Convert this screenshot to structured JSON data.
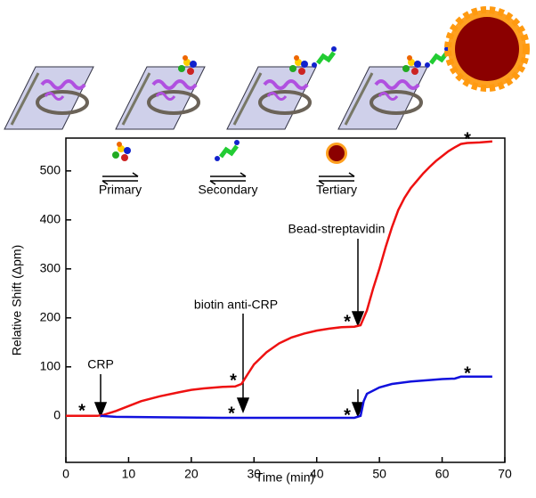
{
  "chart_data": {
    "type": "line",
    "xlabel": "Time (min)",
    "ylabel": "Relative Shift (Δpm)",
    "xlim": [
      0,
      70
    ],
    "ylim": [
      -95,
      567
    ],
    "xticks": [
      0,
      10,
      20,
      30,
      40,
      50,
      60,
      70
    ],
    "yticks": [
      0,
      100,
      200,
      300,
      400,
      500
    ],
    "series": [
      {
        "color": "#ee1111",
        "x": [
          0,
          5,
          6,
          8,
          10,
          12,
          15,
          18,
          20,
          22,
          25,
          27,
          28,
          29,
          30,
          32,
          34,
          36,
          38,
          40,
          42,
          44,
          46,
          47,
          48,
          49,
          50,
          51,
          52,
          53,
          54,
          55,
          56,
          57,
          58,
          59,
          60,
          61,
          62,
          63,
          64,
          66,
          68
        ],
        "values": [
          0,
          0,
          2,
          10,
          20,
          30,
          40,
          48,
          53,
          56,
          59,
          60,
          65,
          85,
          105,
          130,
          148,
          160,
          168,
          174,
          178,
          181,
          182,
          185,
          215,
          260,
          300,
          345,
          385,
          420,
          445,
          465,
          480,
          495,
          508,
          520,
          530,
          540,
          548,
          555,
          557,
          558,
          560
        ]
      },
      {
        "color": "#1111dd",
        "x": [
          5.5,
          8,
          15,
          25,
          35,
          46,
          47,
          47.5,
          48,
          50,
          52,
          55,
          58,
          60,
          62,
          63,
          65,
          68
        ],
        "values": [
          0,
          -2,
          -3,
          -4,
          -4,
          -4,
          0,
          30,
          45,
          58,
          65,
          70,
          73,
          75,
          76,
          80,
          80,
          80
        ]
      }
    ],
    "annotations": [
      "CRP",
      "biotin anti-CRP",
      "Bead-streptavidin"
    ],
    "asterisk": "*",
    "steps": [
      "Primary",
      "Secondary",
      "Tertiary"
    ]
  }
}
